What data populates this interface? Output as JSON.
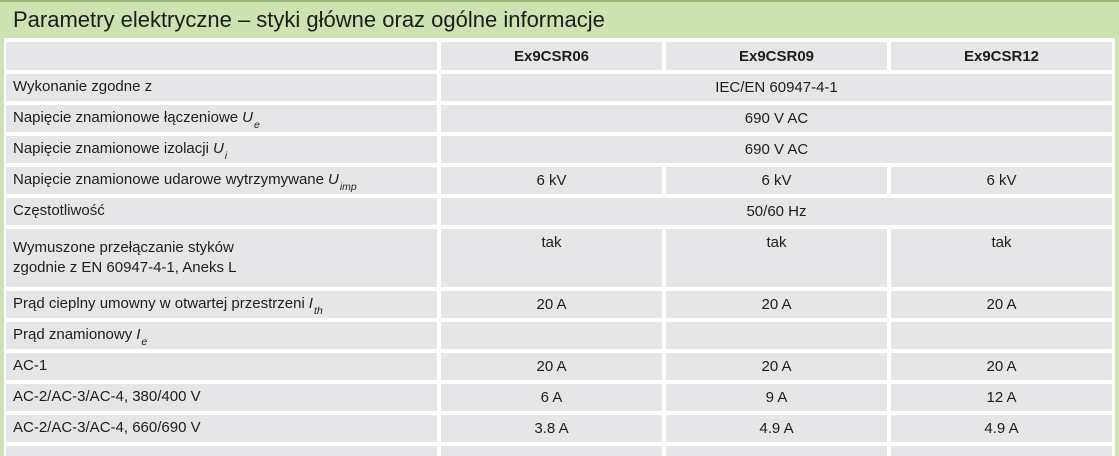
{
  "title": "Parametry elektryczne – styki główne oraz ogólne informacje",
  "colors": {
    "accent_green": "#cfe3b2",
    "accent_green_dark": "#9ab975",
    "row_gray": "#e6e6e8",
    "text": "#1d1d1b"
  },
  "table": {
    "columns": [
      "Ex9CSR06",
      "Ex9CSR09",
      "Ex9CSR12"
    ],
    "rows": [
      {
        "label": "Wykonanie zgodne z",
        "span_value": "IEC/EN 60947-4-1"
      },
      {
        "label": "Napięcie znamionowe łączeniowe",
        "sym": "U",
        "sub": "e",
        "span_value": "690 V AC"
      },
      {
        "label": "Napięcie znamionowe izolacji",
        "sym": "U",
        "sub": "i",
        "span_value": "690 V AC"
      },
      {
        "label": "Napięcie znamionowe udarowe wytrzymywane",
        "sym": "U",
        "sub": "imp",
        "values": [
          "6 kV",
          "6 kV",
          "6 kV"
        ]
      },
      {
        "label": "Częstotliwość",
        "span_value": "50/60 Hz"
      },
      {
        "label": "Wymuszone przełączanie styków",
        "label2": "zgodnie z EN 60947-4-1, Aneks L",
        "values": [
          "tak",
          "tak",
          "tak"
        ]
      },
      {
        "label": "Prąd cieplny umowny w otwartej przestrzeni",
        "sym": "I",
        "sub": "th",
        "values": [
          "20 A",
          "20 A",
          "20 A"
        ]
      },
      {
        "label": "Prąd znamionowy",
        "sym": "I",
        "sub": "e",
        "values": [
          "",
          "",
          ""
        ]
      },
      {
        "label": "AC-1",
        "values": [
          "20 A",
          "20 A",
          "20 A"
        ]
      },
      {
        "label": "AC-2/AC-3/AC-4, 380/400 V",
        "values": [
          "6 A",
          "9 A",
          "12 A"
        ]
      },
      {
        "label": "AC-2/AC-3/AC-4, 660/690 V",
        "values": [
          "3.8 A",
          "4.9 A",
          "4.9 A"
        ]
      }
    ]
  }
}
